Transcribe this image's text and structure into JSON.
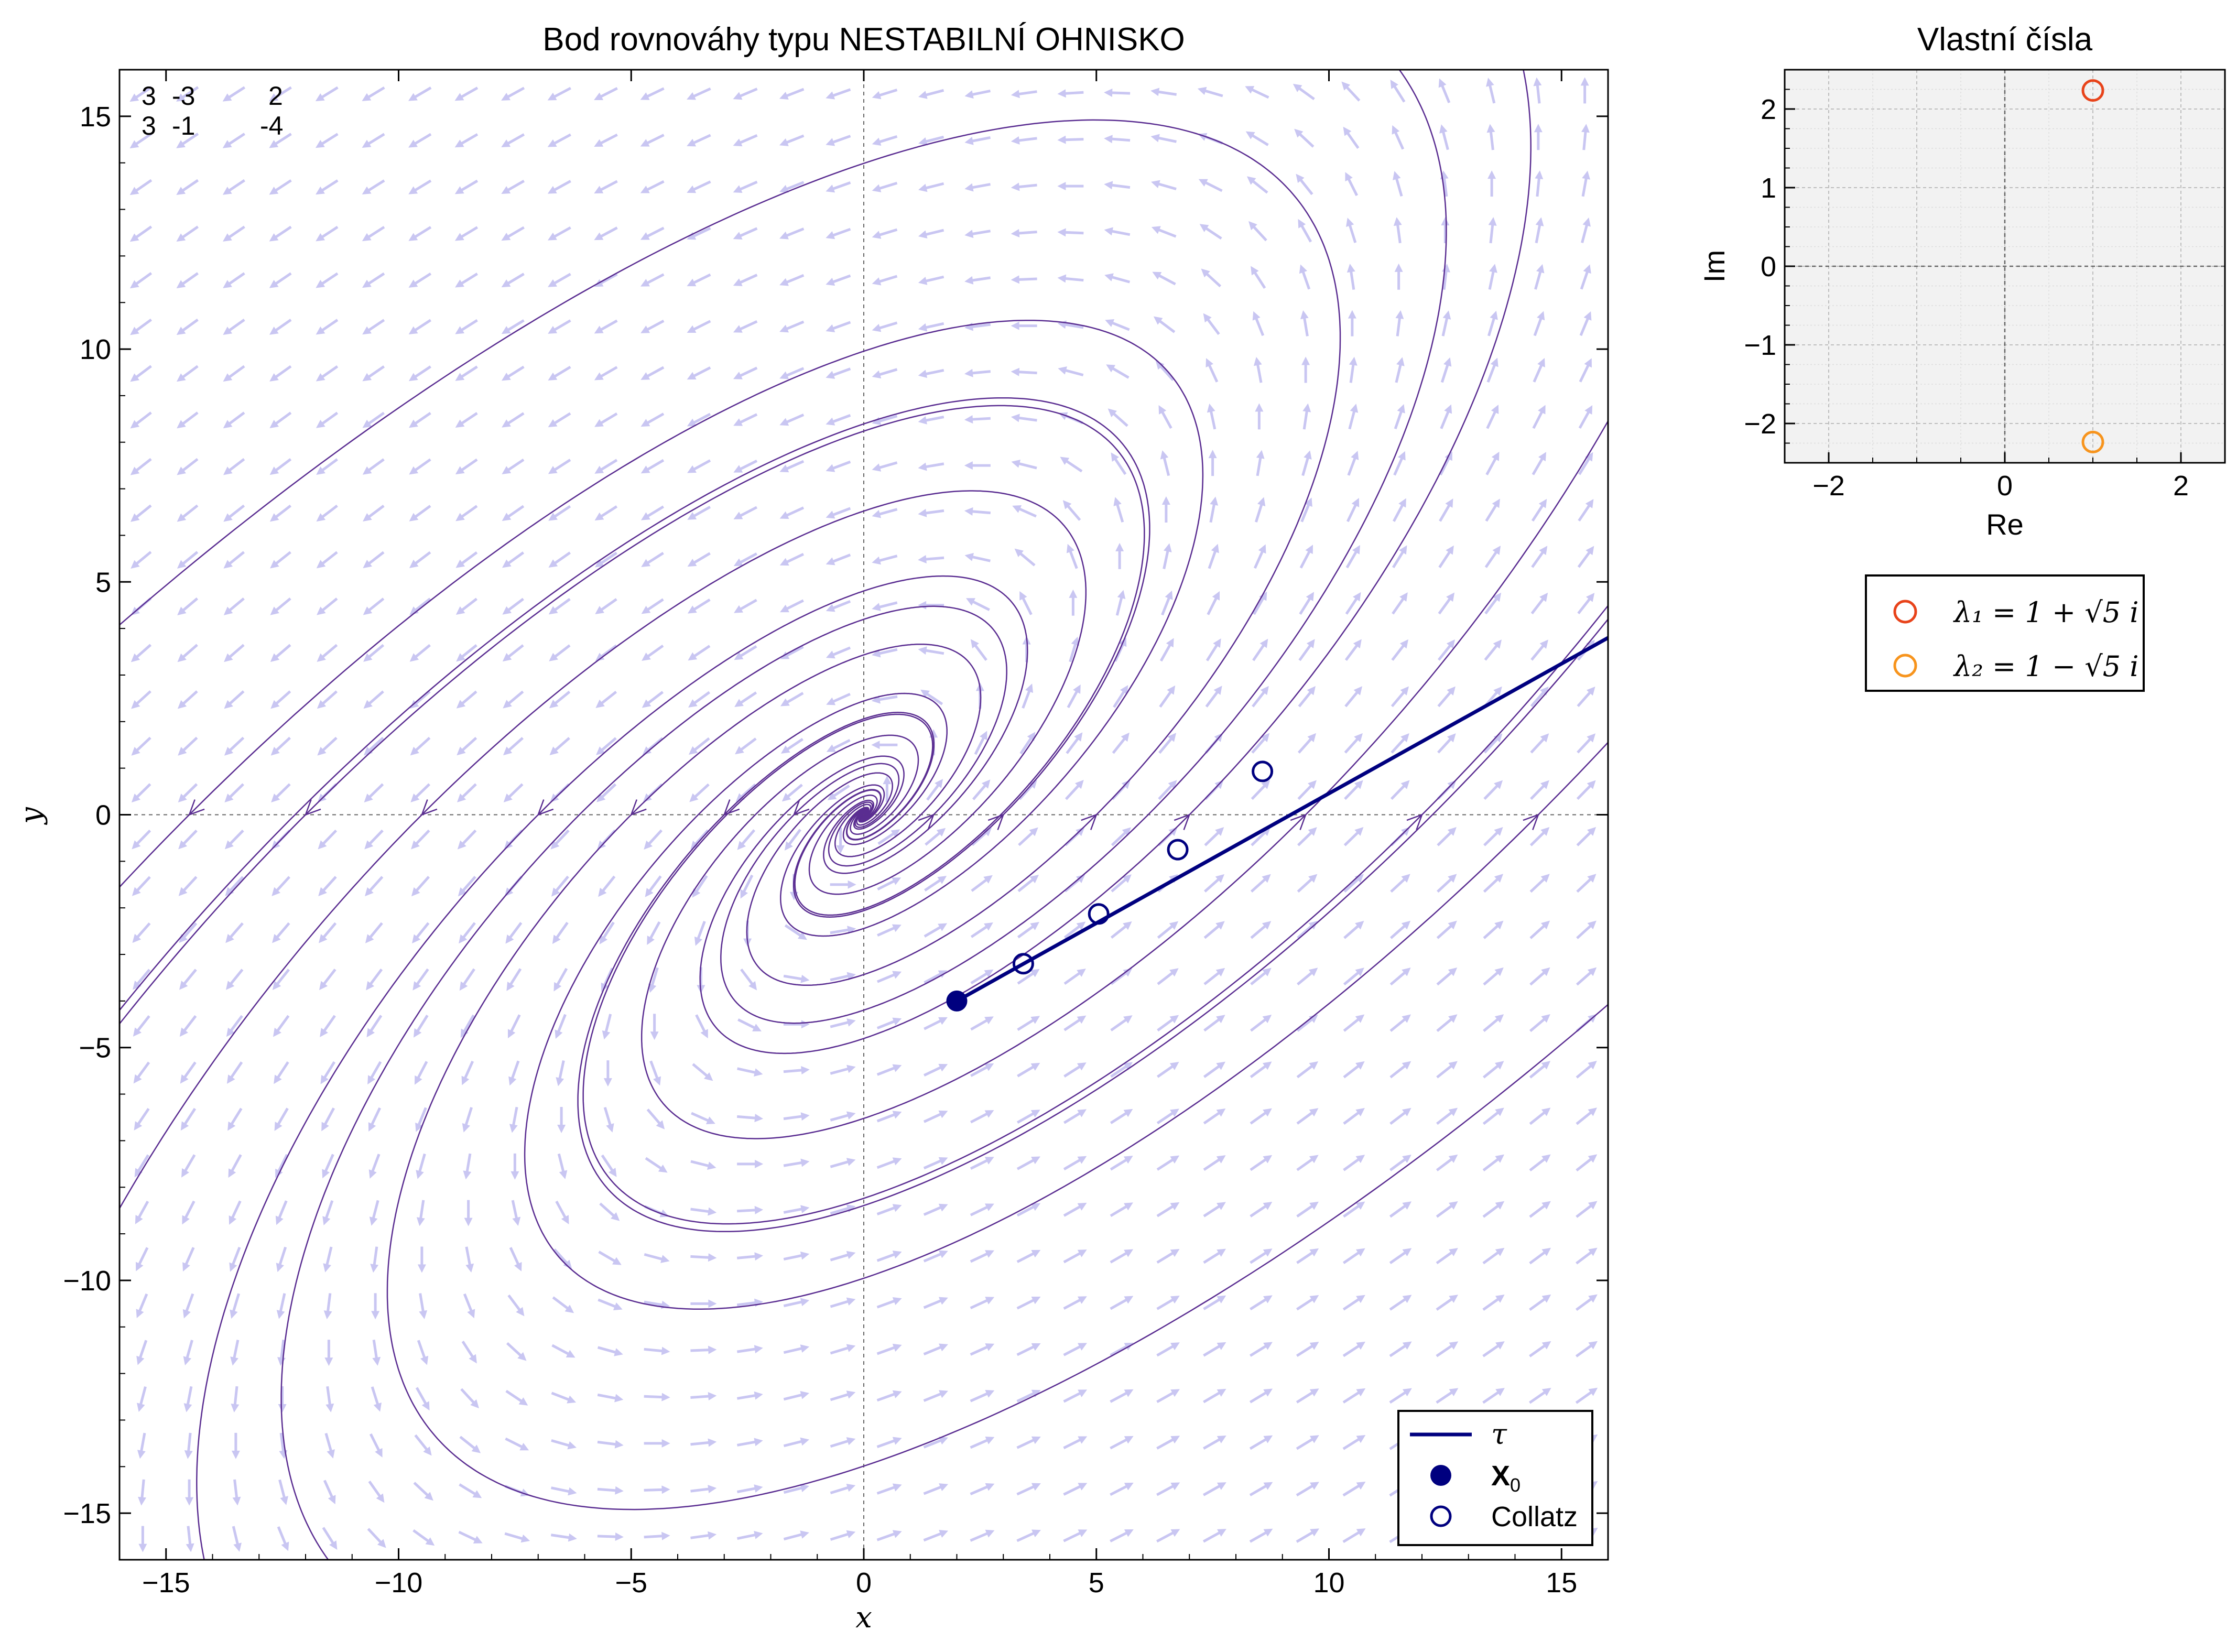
{
  "main_plot": {
    "title": "Bod rovnováhy typu NESTABILNÍ OHNISKO",
    "xlabel": "x",
    "ylabel": "y",
    "matrix_rows": [
      [
        "3",
        "-3",
        "2"
      ],
      [
        "3",
        "-1",
        "-4"
      ]
    ],
    "xlim": [
      -16,
      16
    ],
    "ylim": [
      -16,
      16
    ],
    "xticks": [
      -15,
      -10,
      -5,
      0,
      5,
      10,
      15
    ],
    "yticks": [
      -15,
      -10,
      -5,
      0,
      5,
      10,
      15
    ],
    "xtick_labels": [
      "−15",
      "−10",
      "−5",
      "0",
      "5",
      "10",
      "15"
    ],
    "ytick_labels": [
      "−15",
      "−10",
      "−5",
      "0",
      "5",
      "10",
      "15"
    ],
    "legend": {
      "tau_label": "τ",
      "x0_label": "X",
      "x0_sub": "0",
      "collatz_label": "Collatz",
      "placement": "bottom-right"
    }
  },
  "eig_plot": {
    "title": "Vlastní čísla",
    "xlabel": "Re",
    "ylabel": "Im",
    "xlim": [
      -2.5,
      2.5
    ],
    "ylim": [
      -2.5,
      2.5
    ],
    "xticks": [
      -2,
      0,
      2
    ],
    "yticks": [
      -2,
      -1,
      0,
      1,
      2
    ],
    "xtick_labels": [
      "−2",
      "0",
      "2"
    ],
    "ytick_labels": [
      "−2",
      "−1",
      "0",
      "1",
      "2"
    ],
    "legend": {
      "l1": "λ₁ = 1 + √5 i",
      "l2": "λ₂ = 1 − √5 i"
    }
  },
  "chart_data": [
    {
      "type": "scatter",
      "title": "Bod rovnováhy typu NESTABILNÍ OHNISKO",
      "xlabel": "x",
      "ylabel": "y",
      "xlim": [
        -16,
        16
      ],
      "ylim": [
        -16,
        16
      ],
      "vector_field": {
        "a": 3,
        "b": -3,
        "c": 3,
        "d": -1
      },
      "tangent_line": {
        "name": "τ",
        "points": [
          [
            2,
            -4
          ],
          [
            16,
            3.8
          ]
        ]
      },
      "x0": [
        2,
        -4
      ],
      "collatz_points": [
        [
          3.43,
          -3.2
        ],
        [
          5.05,
          -2.13
        ],
        [
          6.75,
          -0.75
        ],
        [
          8.57,
          0.93
        ]
      ],
      "grid": false
    },
    {
      "type": "scatter",
      "title": "Vlastní čísla",
      "xlabel": "Re",
      "ylabel": "Im",
      "xlim": [
        -2.5,
        2.5
      ],
      "ylim": [
        -2.5,
        2.5
      ],
      "series": [
        {
          "name": "λ₁ = 1 + √5 i",
          "x": [
            1
          ],
          "y": [
            2.236
          ]
        },
        {
          "name": "λ₂ = 1 − √5 i",
          "x": [
            1
          ],
          "y": [
            -2.236
          ]
        }
      ],
      "grid": true
    }
  ],
  "colors": {
    "stream": "#5a2d91",
    "quiver": "#c9c6f2",
    "navy": "#00007f",
    "lambda1": "#e8431a",
    "lambda2": "#f7941d",
    "eig_bg": "#f2f2f2"
  }
}
